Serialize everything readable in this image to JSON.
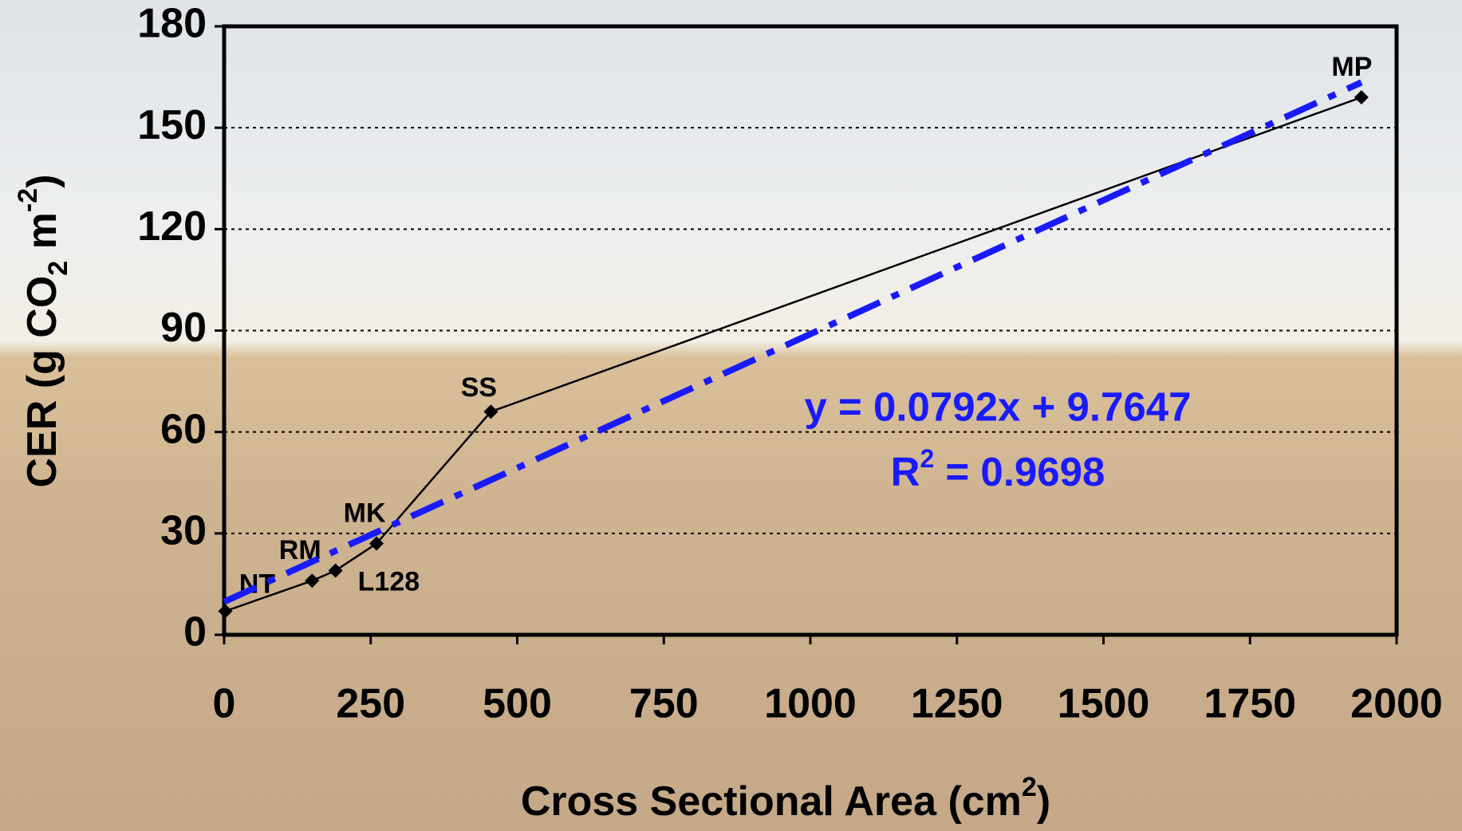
{
  "chart_data": {
    "type": "line",
    "xlabel": [
      "Cross Sectional Area (cm",
      "2",
      ")"
    ],
    "ylabel": [
      "CER (g CO",
      "2",
      " m",
      "-2",
      ")"
    ],
    "x": [
      2,
      150,
      190,
      260,
      455,
      1940
    ],
    "values": [
      7,
      16,
      19,
      27,
      66,
      159
    ],
    "point_labels": [
      "NT",
      "RM",
      "L128",
      "MK",
      "SS",
      "MP"
    ],
    "color": "#000000",
    "xlim": [
      0,
      2000
    ],
    "xticks": [
      0,
      250,
      500,
      750,
      1000,
      1250,
      1500,
      1750,
      2000
    ],
    "ylim": [
      0,
      180
    ],
    "yticks": [
      0,
      30,
      60,
      90,
      120,
      150,
      180
    ],
    "grid": true,
    "trendline": {
      "slope": 0.0792,
      "intercept": 9.7647,
      "color": "#1a1aff",
      "equation": "y = 0.0792x + 9.7647",
      "r_squared_label": [
        "R",
        "2",
        " = 0.9698"
      ]
    }
  }
}
